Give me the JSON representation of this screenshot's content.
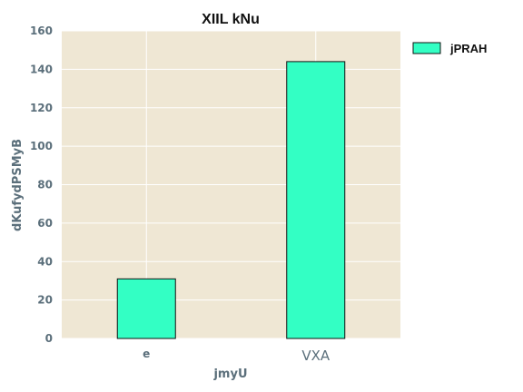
{
  "chart_data": {
    "type": "bar",
    "title": "XIIL kNu",
    "xlabel": "jmyU",
    "ylabel": "dKufydPSMyB",
    "categories": [
      "e",
      "VXA"
    ],
    "series": [
      {
        "name": "jPRAH",
        "values": [
          31,
          144
        ]
      }
    ],
    "ylim": [
      0,
      160
    ],
    "yticks": [
      0,
      20,
      40,
      60,
      80,
      100,
      120,
      140,
      160
    ],
    "grid": true,
    "legend": "outside-top-right",
    "colors": {
      "plot_background": "#efe7d4",
      "grid": "#ffffff",
      "bar_fill": "#33ffc4",
      "bar_edge": "#111111",
      "tick_text": "#5b6f7b"
    }
  }
}
